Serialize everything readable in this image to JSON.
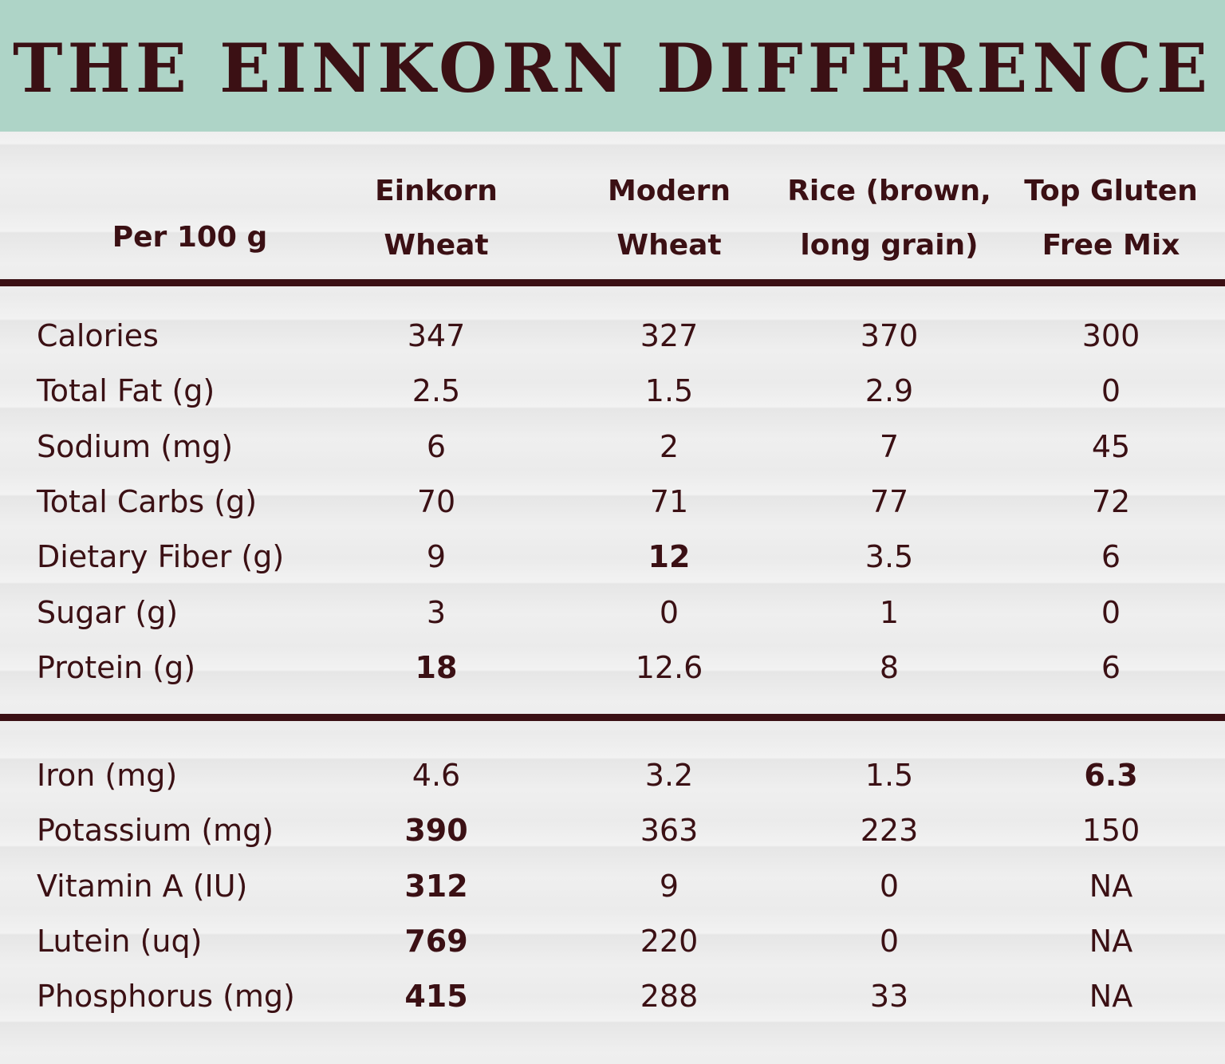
{
  "header": {
    "title": "THE EINKORN DIFFERENCE"
  },
  "table": {
    "corner": "Per 100 g",
    "columns": [
      [
        "Einkorn",
        "Wheat"
      ],
      [
        "Modern",
        "Wheat"
      ],
      [
        "Rice (brown,",
        "long grain)"
      ],
      [
        "Top Gluten",
        "Free Mix"
      ]
    ],
    "sections": [
      {
        "rows": [
          {
            "label": "Calories",
            "values": [
              "347",
              "327",
              "370",
              "300"
            ]
          },
          {
            "label": "Total Fat (g)",
            "values": [
              "2.5",
              "1.5",
              "2.9",
              "0"
            ]
          },
          {
            "label": "Sodium (mg)",
            "values": [
              "6",
              "2",
              "7",
              "45"
            ]
          },
          {
            "label": "Total Carbs (g)",
            "values": [
              "70",
              "71",
              "77",
              "72"
            ]
          },
          {
            "label": "Dietary Fiber (g)",
            "values": [
              "9",
              "12",
              "3.5",
              "6"
            ]
          },
          {
            "label": "Sugar (g)",
            "values": [
              "3",
              "0",
              "1",
              "0"
            ]
          },
          {
            "label": "Protein (g)",
            "values": [
              "18",
              "12.6",
              "8",
              "6"
            ]
          }
        ]
      },
      {
        "rows": [
          {
            "label": "Iron (mg)",
            "values": [
              "4.6",
              "3.2",
              "1.5",
              "6.3"
            ]
          },
          {
            "label": "Potassium (mg)",
            "values": [
              "390",
              "363",
              "223",
              "150"
            ]
          },
          {
            "label": "Vitamin A (IU)",
            "values": [
              "312",
              "9",
              "0",
              "NA"
            ]
          },
          {
            "label": "Lutein (uq)",
            "values": [
              "769",
              "220",
              "0",
              "NA"
            ]
          },
          {
            "label": "Phosphorus (mg)",
            "values": [
              "415",
              "288",
              "33",
              "NA"
            ]
          }
        ]
      }
    ]
  }
}
